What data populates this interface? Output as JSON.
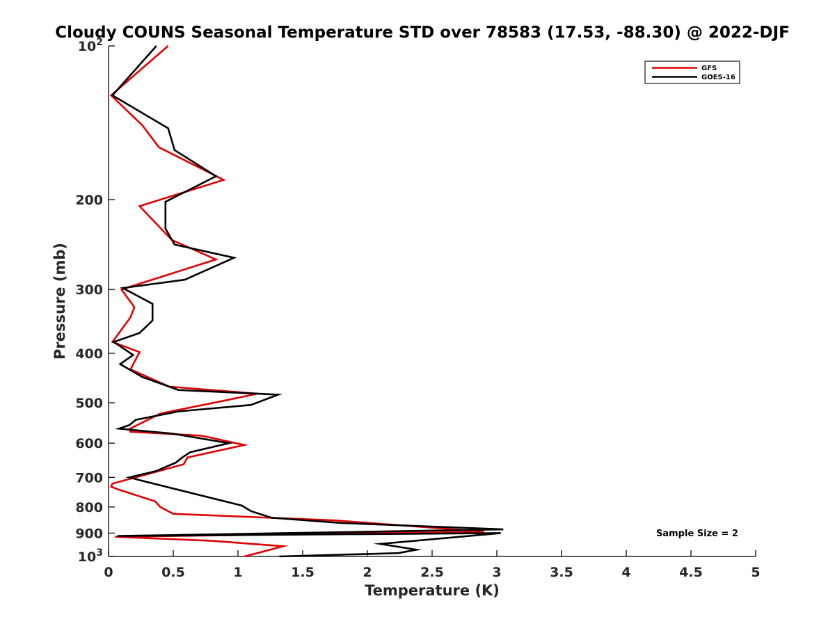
{
  "chart_data": {
    "type": "line",
    "title": "Cloudy COUNS Seasonal Temperature STD over 78583 (17.53, -88.30) @ 2022-DJF",
    "xlabel": "Temperature (K)",
    "ylabel": "Pressure (mb)",
    "xlim": [
      0,
      5
    ],
    "ylim": [
      100,
      1000
    ],
    "yscale": "log",
    "y_reversed": true,
    "grid": false,
    "legend_position": "top-right",
    "x_ticks": [
      {
        "value": 0,
        "label": "0"
      },
      {
        "value": 0.5,
        "label": "0.5"
      },
      {
        "value": 1,
        "label": "1"
      },
      {
        "value": 1.5,
        "label": "1.5"
      },
      {
        "value": 2,
        "label": "2"
      },
      {
        "value": 2.5,
        "label": "2.5"
      },
      {
        "value": 3,
        "label": "3"
      },
      {
        "value": 3.5,
        "label": "3.5"
      },
      {
        "value": 4,
        "label": "4"
      },
      {
        "value": 4.5,
        "label": "4.5"
      },
      {
        "value": 5,
        "label": "5"
      }
    ],
    "y_ticks": [
      {
        "value": 100,
        "base": "10",
        "exp": "2"
      },
      {
        "value": 200,
        "base": "200",
        "exp": ""
      },
      {
        "value": 300,
        "base": "300",
        "exp": ""
      },
      {
        "value": 400,
        "base": "400",
        "exp": ""
      },
      {
        "value": 500,
        "base": "500",
        "exp": ""
      },
      {
        "value": 600,
        "base": "600",
        "exp": ""
      },
      {
        "value": 700,
        "base": "700",
        "exp": ""
      },
      {
        "value": 800,
        "base": "800",
        "exp": ""
      },
      {
        "value": 900,
        "base": "900",
        "exp": ""
      },
      {
        "value": 1000,
        "base": "10",
        "exp": "3"
      }
    ],
    "annotation": "Sample Size = 2",
    "series": [
      {
        "name": "GFS",
        "color": "#e00000",
        "x": [
          0.46,
          0.02,
          0.26,
          0.39,
          0.89,
          0.24,
          0.49,
          0.83,
          0.1,
          0.2,
          0.17,
          0.03,
          0.24,
          0.17,
          0.47,
          1.15,
          0.9,
          0.4,
          0.16,
          0.17,
          0.72,
          1.05,
          0.61,
          0.58,
          0.3,
          0.03,
          0.02,
          0.08,
          0.36,
          0.4,
          0.5,
          1.75,
          2.55,
          2.9,
          0.05,
          0.8,
          1.35,
          1.25,
          1.05
        ],
        "y": [
          100,
          125,
          143,
          158,
          183,
          206,
          240,
          262,
          300,
          325,
          340,
          380,
          398,
          430,
          465,
          480,
          495,
          525,
          563,
          570,
          580,
          605,
          640,
          660,
          690,
          720,
          730,
          740,
          780,
          800,
          825,
          850,
          880,
          895,
          915,
          932,
          955,
          970,
          1000
        ]
      },
      {
        "name": "GOES-16",
        "color": "#000000",
        "x": [
          0.37,
          0.03,
          0.46,
          0.51,
          0.83,
          0.44,
          0.44,
          0.51,
          0.97,
          0.59,
          0.11,
          0.34,
          0.34,
          0.24,
          0.04,
          0.19,
          0.09,
          0.26,
          0.54,
          1.31,
          1.1,
          0.54,
          0.21,
          0.16,
          0.08,
          0.5,
          0.93,
          0.63,
          0.57,
          0.52,
          0.37,
          0.16,
          0.25,
          1.03,
          1.1,
          1.26,
          1.8,
          3.05,
          0.07,
          3.03,
          2.1,
          2.38,
          2.24,
          1.32
        ],
        "y": [
          100,
          125,
          145,
          160,
          180,
          202,
          228,
          245,
          260,
          287,
          298,
          320,
          345,
          365,
          380,
          403,
          420,
          445,
          472,
          482,
          505,
          520,
          540,
          553,
          562,
          575,
          600,
          625,
          640,
          655,
          680,
          700,
          710,
          795,
          815,
          840,
          860,
          885,
          912,
          900,
          945,
          970,
          985,
          1000
        ]
      }
    ]
  }
}
